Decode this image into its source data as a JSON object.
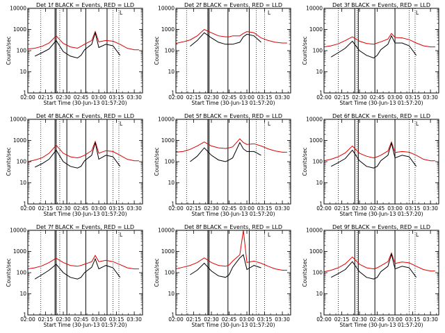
{
  "colors": {
    "events": "#000000",
    "lld": "#dd0000"
  },
  "common": {
    "ylabel": "Counts/sec",
    "xlabel": "Start Time (30-Jun-13 01:57:20)",
    "xticks": [
      "02:00",
      "02:15",
      "02:30",
      "02:45",
      "03:00",
      "03:15",
      "03:30"
    ],
    "yticks": [
      "1",
      "10",
      "100",
      "1000",
      "10000"
    ],
    "marker": "L"
  },
  "chart_data": [
    {
      "type": "line",
      "title": "Det 1f BLACK = Events, RED = LLD",
      "x": [
        "02:00",
        "02:06",
        "02:12",
        "02:18",
        "02:24",
        "02:30",
        "02:36",
        "02:42",
        "02:45",
        "02:48",
        "02:54",
        "02:57",
        "03:00",
        "03:06",
        "03:12",
        "03:18",
        "03:24",
        "03:30",
        "03:34"
      ],
      "xlim": [
        "02:00",
        "03:37"
      ],
      "ylim": [
        1,
        10000
      ],
      "yscale": "log",
      "grid": false,
      "legend": "title",
      "series": [
        {
          "name": "LLD",
          "values": [
            120,
            130,
            160,
            230,
            500,
            220,
            150,
            130,
            160,
            200,
            300,
            800,
            260,
            300,
            280,
            200,
            130,
            110,
            110
          ]
        },
        {
          "name": "Events",
          "values": [
            null,
            55,
            80,
            120,
            300,
            90,
            55,
            45,
            60,
            110,
            200,
            700,
            140,
            200,
            170,
            60,
            null,
            null,
            null
          ]
        }
      ],
      "vlines_solid": [
        "02:23",
        "02:24",
        "02:33",
        "02:49",
        "03:07"
      ],
      "vlines_dotted": [
        "02:11",
        "02:27",
        "03:12",
        "03:17"
      ]
    },
    {
      "type": "line",
      "title": "Det 2f BLACK = Events, RED = LLD",
      "x": [
        "02:00",
        "02:06",
        "02:12",
        "02:18",
        "02:24",
        "02:30",
        "02:36",
        "02:42",
        "02:45",
        "02:48",
        "02:54",
        "02:57",
        "03:00",
        "03:06",
        "03:12",
        "03:18",
        "03:24",
        "03:30",
        "03:34"
      ],
      "xlim": [
        "02:00",
        "03:37"
      ],
      "ylim": [
        1,
        10000
      ],
      "yscale": "log",
      "grid": false,
      "legend": "title",
      "series": [
        {
          "name": "LLD",
          "values": [
            220,
            260,
            320,
            500,
            1000,
            700,
            500,
            450,
            450,
            500,
            500,
            650,
            800,
            700,
            400,
            300,
            250,
            230,
            230
          ]
        },
        {
          "name": "Events",
          "values": [
            null,
            null,
            160,
            300,
            700,
            400,
            250,
            200,
            200,
            200,
            250,
            450,
            600,
            500,
            250,
            null,
            null,
            null,
            null
          ]
        }
      ],
      "vlines_solid": [
        "02:27",
        "02:28",
        "02:44",
        "03:02"
      ],
      "vlines_dotted": [
        "02:09",
        "02:27",
        "03:08",
        "03:15"
      ]
    },
    {
      "type": "line",
      "title": "Det 3f BLACK = Events, RED = LLD",
      "x": [
        "02:00",
        "02:06",
        "02:12",
        "02:18",
        "02:24",
        "02:30",
        "02:36",
        "02:42",
        "02:45",
        "02:48",
        "02:54",
        "02:57",
        "03:00",
        "03:06",
        "03:12",
        "03:18",
        "03:24",
        "03:30",
        "03:34"
      ],
      "xlim": [
        "02:00",
        "03:37"
      ],
      "ylim": [
        1,
        10000
      ],
      "yscale": "log",
      "grid": false,
      "legend": "title",
      "series": [
        {
          "name": "LLD",
          "values": [
            150,
            170,
            210,
            300,
            450,
            280,
            220,
            200,
            230,
            260,
            350,
            650,
            420,
            400,
            330,
            230,
            170,
            150,
            150
          ]
        },
        {
          "name": "Events",
          "values": [
            null,
            50,
            80,
            130,
            280,
            100,
            60,
            45,
            60,
            110,
            200,
            500,
            230,
            230,
            170,
            60,
            null,
            null,
            null
          ]
        }
      ],
      "vlines_solid": [
        "02:26",
        "02:29",
        "02:43",
        "03:00"
      ],
      "vlines_dotted": [
        "02:12",
        "02:28",
        "03:12",
        "03:17"
      ]
    },
    {
      "type": "line",
      "title": "Det 4f BLACK = Events, RED = LLD",
      "x": [
        "02:00",
        "02:06",
        "02:12",
        "02:18",
        "02:24",
        "02:30",
        "02:36",
        "02:42",
        "02:45",
        "02:48",
        "02:54",
        "02:57",
        "03:00",
        "03:06",
        "03:12",
        "03:18",
        "03:24",
        "03:30",
        "03:34"
      ],
      "xlim": [
        "02:00",
        "03:37"
      ],
      "ylim": [
        1,
        10000
      ],
      "yscale": "log",
      "grid": false,
      "legend": "title",
      "series": [
        {
          "name": "LLD",
          "values": [
            100,
            120,
            150,
            250,
            600,
            250,
            170,
            150,
            170,
            200,
            330,
            900,
            250,
            330,
            300,
            200,
            130,
            110,
            110
          ]
        },
        {
          "name": "Events",
          "values": [
            null,
            55,
            80,
            130,
            350,
            100,
            60,
            50,
            60,
            110,
            200,
            800,
            130,
            200,
            170,
            60,
            null,
            null,
            null
          ]
        }
      ],
      "vlines_solid": [
        "02:23",
        "02:24",
        "02:33",
        "02:49",
        "03:07"
      ],
      "vlines_dotted": [
        "02:11",
        "02:27",
        "03:12",
        "03:17"
      ]
    },
    {
      "type": "line",
      "title": "Det 5f BLACK = Events, RED = LLD",
      "x": [
        "02:00",
        "02:06",
        "02:12",
        "02:18",
        "02:24",
        "02:30",
        "02:36",
        "02:42",
        "02:45",
        "02:48",
        "02:54",
        "02:57",
        "03:00",
        "03:06",
        "03:12",
        "03:18",
        "03:24",
        "03:30",
        "03:34"
      ],
      "xlim": [
        "02:00",
        "03:37"
      ],
      "ylim": [
        1,
        10000
      ],
      "yscale": "log",
      "grid": false,
      "legend": "title",
      "series": [
        {
          "name": "LLD",
          "values": [
            280,
            300,
            380,
            550,
            850,
            550,
            450,
            420,
            450,
            500,
            1200,
            800,
            650,
            700,
            550,
            400,
            320,
            280,
            280
          ]
        },
        {
          "name": "Events",
          "values": [
            null,
            null,
            100,
            180,
            450,
            200,
            120,
            100,
            120,
            150,
            800,
            400,
            300,
            300,
            200,
            null,
            null,
            null,
            null
          ]
        }
      ],
      "vlines_solid": [
        "02:27",
        "02:28",
        "02:44",
        "03:02"
      ],
      "vlines_dotted": [
        "02:09",
        "02:27",
        "03:08",
        "03:15"
      ]
    },
    {
      "type": "line",
      "title": "Det 6f BLACK = Events, RED = LLD",
      "x": [
        "02:00",
        "02:06",
        "02:12",
        "02:18",
        "02:24",
        "02:30",
        "02:36",
        "02:42",
        "02:45",
        "02:48",
        "02:54",
        "02:57",
        "03:00",
        "03:06",
        "03:12",
        "03:18",
        "03:24",
        "03:30",
        "03:34"
      ],
      "xlim": [
        "02:00",
        "03:37"
      ],
      "ylim": [
        1,
        10000
      ],
      "yscale": "log",
      "grid": false,
      "legend": "title",
      "series": [
        {
          "name": "LLD",
          "values": [
            110,
            130,
            170,
            260,
            550,
            250,
            180,
            150,
            170,
            200,
            320,
            850,
            270,
            300,
            280,
            200,
            130,
            110,
            110
          ]
        },
        {
          "name": "Events",
          "values": [
            null,
            60,
            90,
            140,
            350,
            110,
            60,
            50,
            60,
            110,
            200,
            750,
            150,
            200,
            170,
            60,
            null,
            null,
            null
          ]
        }
      ],
      "vlines_solid": [
        "02:26",
        "02:29",
        "02:43",
        "03:00"
      ],
      "vlines_dotted": [
        "02:12",
        "02:28",
        "03:12",
        "03:17"
      ]
    },
    {
      "type": "line",
      "title": "Det 7f BLACK = Events, RED = LLD",
      "x": [
        "02:00",
        "02:06",
        "02:12",
        "02:18",
        "02:24",
        "02:30",
        "02:36",
        "02:42",
        "02:45",
        "02:48",
        "02:54",
        "02:57",
        "03:00",
        "03:06",
        "03:12",
        "03:18",
        "03:24",
        "03:30",
        "03:34"
      ],
      "xlim": [
        "02:00",
        "03:37"
      ],
      "ylim": [
        1,
        10000
      ],
      "yscale": "log",
      "grid": false,
      "legend": "title",
      "series": [
        {
          "name": "LLD",
          "values": [
            150,
            170,
            210,
            300,
            480,
            300,
            220,
            200,
            220,
            250,
            330,
            650,
            330,
            380,
            330,
            240,
            170,
            150,
            150
          ]
        },
        {
          "name": "Events",
          "values": [
            null,
            50,
            80,
            130,
            250,
            100,
            60,
            50,
            60,
            100,
            180,
            450,
            150,
            220,
            170,
            60,
            null,
            null,
            null
          ]
        }
      ],
      "vlines_solid": [
        "02:23",
        "02:24",
        "02:33",
        "02:49",
        "03:07"
      ],
      "vlines_dotted": [
        "02:11",
        "02:27",
        "03:12",
        "03:17"
      ]
    },
    {
      "type": "line",
      "title": "Det 8f BLACK = Events, RED = LLD",
      "x": [
        "02:00",
        "02:06",
        "02:12",
        "02:18",
        "02:24",
        "02:30",
        "02:36",
        "02:42",
        "02:45",
        "02:48",
        "02:54",
        "02:57",
        "03:00",
        "03:06",
        "03:12",
        "03:18",
        "03:24",
        "03:30",
        "03:34"
      ],
      "xlim": [
        "02:00",
        "03:37"
      ],
      "ylim": [
        1,
        10000
      ],
      "yscale": "log",
      "grid": false,
      "legend": "title",
      "series": [
        {
          "name": "LLD",
          "values": [
            150,
            180,
            220,
            300,
            500,
            300,
            220,
            200,
            230,
            350,
            700,
            10000,
            300,
            350,
            280,
            200,
            150,
            130,
            130
          ]
        },
        {
          "name": "Events",
          "values": [
            null,
            null,
            80,
            130,
            280,
            120,
            70,
            60,
            80,
            180,
            500,
            700,
            140,
            220,
            170,
            null,
            null,
            null,
            null
          ]
        }
      ],
      "vlines_solid": [
        "02:27",
        "02:28",
        "02:44",
        "03:02"
      ],
      "vlines_dotted": [
        "02:09",
        "02:27",
        "03:08",
        "03:15"
      ]
    },
    {
      "type": "line",
      "title": "Det 9f BLACK = Events, RED = LLD",
      "x": [
        "02:00",
        "02:06",
        "02:12",
        "02:18",
        "02:24",
        "02:30",
        "02:36",
        "02:42",
        "02:45",
        "02:48",
        "02:54",
        "02:57",
        "03:00",
        "03:06",
        "03:12",
        "03:18",
        "03:24",
        "03:30",
        "03:34"
      ],
      "xlim": [
        "02:00",
        "03:37"
      ],
      "ylim": [
        1,
        10000
      ],
      "yscale": "log",
      "grid": false,
      "legend": "title",
      "series": [
        {
          "name": "LLD",
          "values": [
            110,
            130,
            170,
            260,
            550,
            250,
            170,
            150,
            170,
            210,
            330,
            850,
            270,
            320,
            290,
            200,
            140,
            120,
            120
          ]
        },
        {
          "name": "Events",
          "values": [
            null,
            60,
            90,
            140,
            330,
            110,
            60,
            50,
            60,
            110,
            200,
            750,
            150,
            200,
            170,
            60,
            null,
            null,
            null
          ]
        }
      ],
      "vlines_solid": [
        "02:26",
        "02:29",
        "02:43",
        "03:00"
      ],
      "vlines_dotted": [
        "02:12",
        "02:28",
        "03:12",
        "03:17"
      ]
    }
  ]
}
